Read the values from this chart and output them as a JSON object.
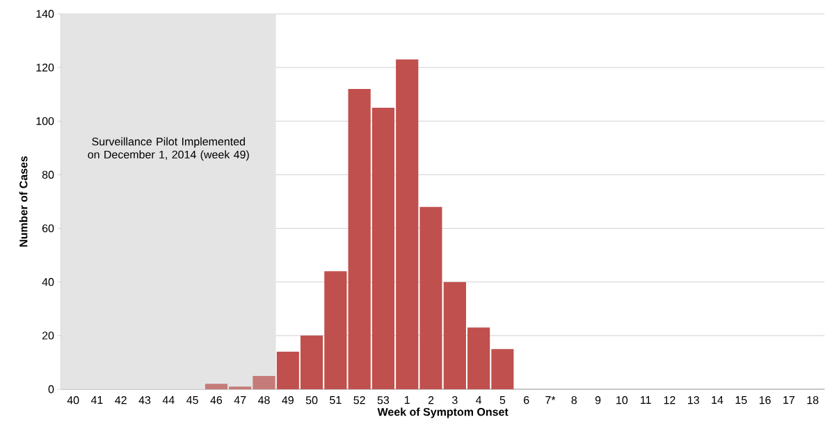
{
  "chart_data": {
    "type": "bar",
    "xlabel": "Week of Symptom Onset",
    "ylabel": "Number of Cases",
    "categories": [
      "40",
      "41",
      "42",
      "43",
      "44",
      "45",
      "46",
      "47",
      "48",
      "49",
      "50",
      "51",
      "52",
      "53",
      "1",
      "2",
      "3",
      "4",
      "5",
      "6",
      "7*",
      "8",
      "9",
      "10",
      "11",
      "12",
      "13",
      "14",
      "15",
      "16",
      "17",
      "18"
    ],
    "values": [
      0,
      0,
      0,
      0,
      0,
      0,
      2,
      1,
      5,
      14,
      20,
      44,
      112,
      105,
      123,
      68,
      40,
      23,
      15,
      0,
      0,
      0,
      0,
      0,
      0,
      0,
      0,
      0,
      0,
      0,
      0,
      0
    ],
    "colors": [
      "#c0504d",
      "#c0504d",
      "#c0504d",
      "#c0504d",
      "#c0504d",
      "#c0504d",
      "#c47b79",
      "#c47b79",
      "#c47b79",
      "#c0504d",
      "#c0504d",
      "#c0504d",
      "#c0504d",
      "#c0504d",
      "#c0504d",
      "#c0504d",
      "#c0504d",
      "#c0504d",
      "#c0504d",
      "#c0504d",
      "#c0504d",
      "#c0504d",
      "#c0504d",
      "#c0504d",
      "#c0504d",
      "#c0504d",
      "#c0504d",
      "#c0504d",
      "#c0504d",
      "#c0504d",
      "#c0504d",
      "#c0504d"
    ],
    "ylim": [
      0,
      140
    ],
    "yticks": [
      0,
      20,
      40,
      60,
      80,
      100,
      120,
      140
    ],
    "grid": "y",
    "bands": [
      {
        "axis": "x",
        "from": "40",
        "to": "48",
        "label": "Surveillance Pilot Implemented on December 1, 2014 (week 49)",
        "color": "#e4e4e4"
      }
    ]
  }
}
